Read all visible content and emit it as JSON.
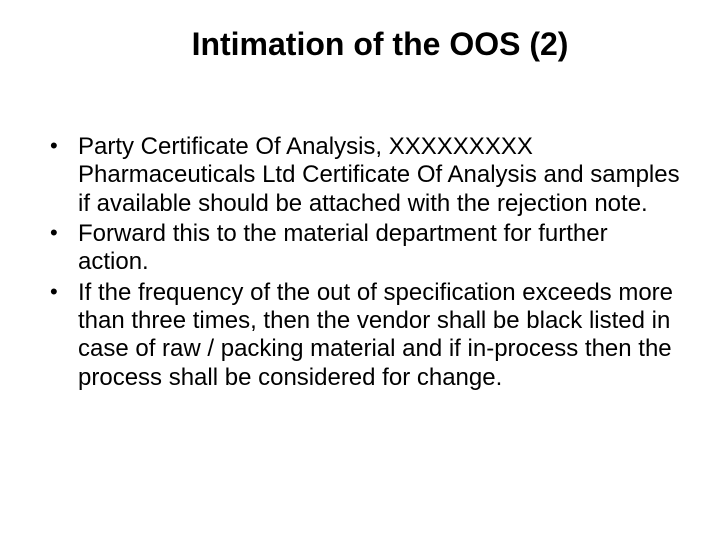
{
  "slide": {
    "title": "Intimation of the OOS (2)",
    "title_fontsize": 32,
    "title_color": "#000000",
    "body_fontsize": 24,
    "body_color": "#000000",
    "background_color": "#ffffff",
    "bullets": [
      {
        "text": "Party Certificate Of Analysis, XXXXXXXXX Pharmaceuticals Ltd Certificate Of Analysis and samples if available should be attached with the rejection note."
      },
      {
        "text": " Forward this to the material department for further action."
      },
      {
        "text": " If the frequency of the out of specification exceeds more than three times, then the vendor shall be black listed in case of raw / packing material and if in-process then the process shall be considered for change."
      }
    ]
  }
}
